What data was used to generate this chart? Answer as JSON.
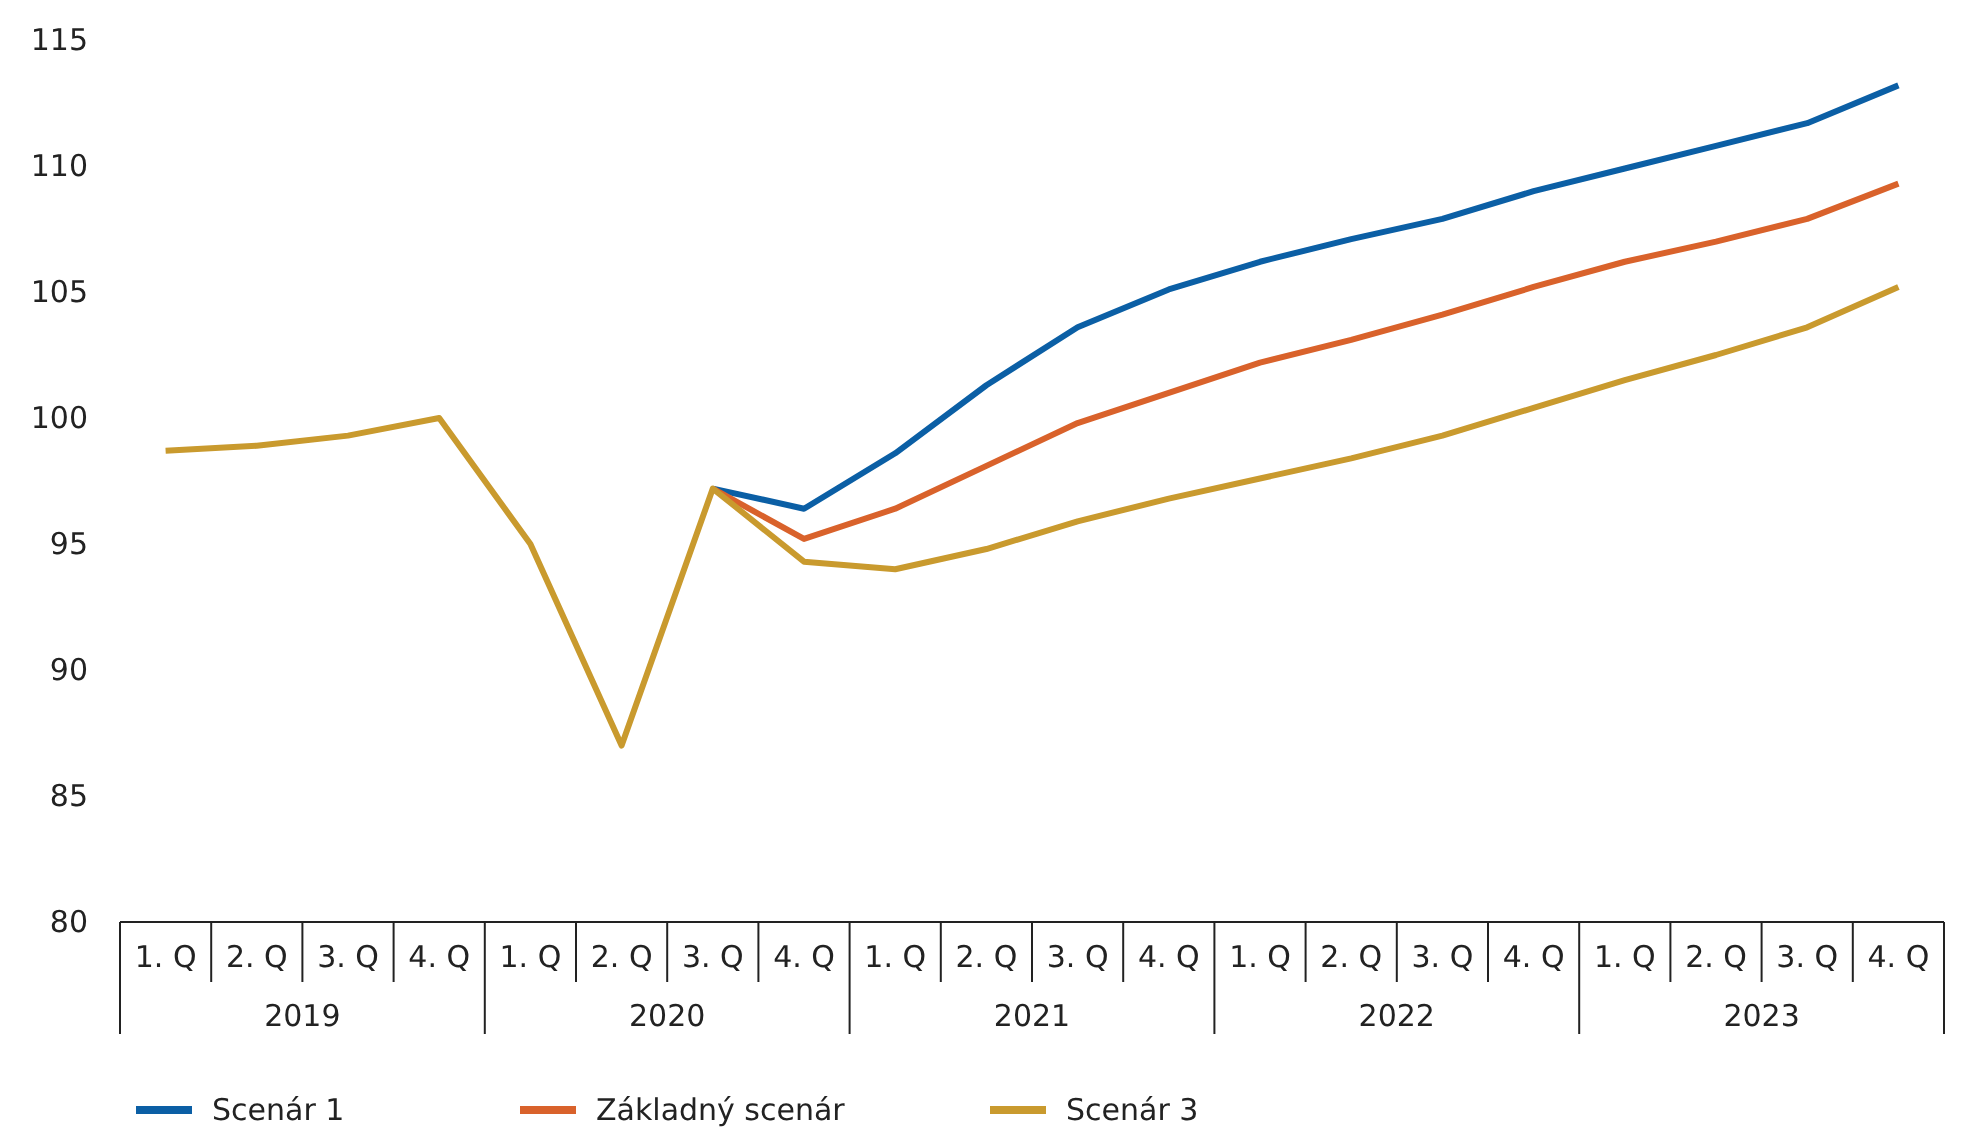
{
  "chart_data": {
    "type": "line",
    "categories": [
      "1. Q",
      "2. Q",
      "3. Q",
      "4. Q",
      "1. Q",
      "2. Q",
      "3. Q",
      "4. Q",
      "1. Q",
      "2. Q",
      "3. Q",
      "4. Q",
      "1. Q",
      "2. Q",
      "3. Q",
      "4. Q",
      "1. Q",
      "2. Q",
      "3. Q",
      "4. Q"
    ],
    "annotations": [
      "2019",
      "2020",
      "2021",
      "2022",
      "2023"
    ],
    "ylim": [
      80,
      115
    ],
    "yticks": [
      80,
      85,
      90,
      95,
      100,
      105,
      110,
      115
    ],
    "grid": false,
    "legend": "bottom",
    "marker": "none",
    "line_style": "solid",
    "series": [
      {
        "name": "Scenár 1",
        "color": "#0b5fa5",
        "values": [
          null,
          null,
          null,
          null,
          null,
          null,
          97.2,
          96.4,
          98.6,
          101.3,
          103.6,
          105.1,
          106.2,
          107.1,
          107.9,
          109.0,
          109.9,
          110.8,
          111.7,
          113.2
        ]
      },
      {
        "name": "Základný scenár",
        "color": "#d9622b",
        "values": [
          null,
          null,
          null,
          null,
          null,
          null,
          97.2,
          95.2,
          96.4,
          98.1,
          99.8,
          101.0,
          102.2,
          103.1,
          104.1,
          105.2,
          106.2,
          107.0,
          107.9,
          109.3
        ]
      },
      {
        "name": "Scenár 3",
        "color": "#c99a2e",
        "values": [
          98.7,
          98.9,
          99.3,
          100,
          95,
          87,
          97.2,
          94.3,
          94.0,
          94.8,
          95.9,
          96.8,
          97.6,
          98.4,
          99.3,
          100.4,
          101.5,
          102.5,
          103.6,
          105.2
        ]
      }
    ]
  }
}
